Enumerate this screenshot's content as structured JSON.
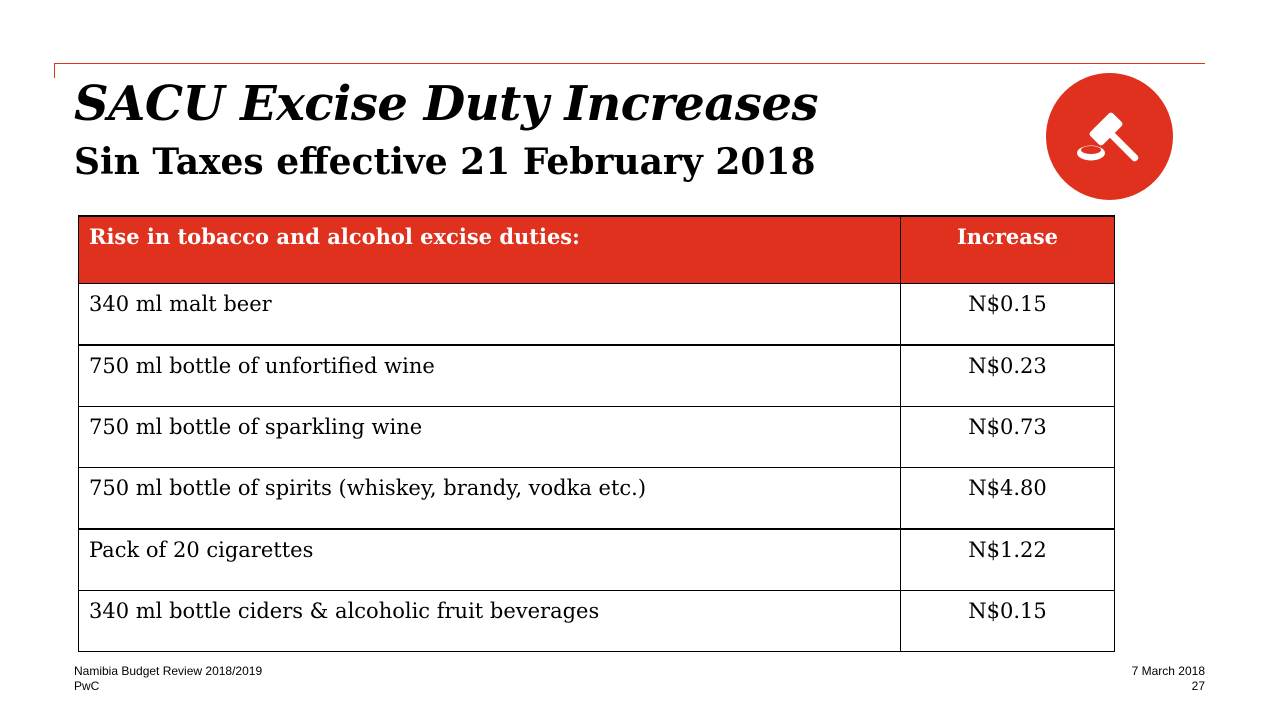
{
  "slide": {
    "title": "SACU Excise Duty Increases",
    "subtitle": "Sin Taxes effective 21 February 2018",
    "icon": "gavel-icon",
    "accent_color": "#e0301e"
  },
  "table": {
    "headers": {
      "item": "Rise in tobacco and alcohol excise duties:",
      "increase": "Increase"
    },
    "rows": [
      {
        "item": "340 ml malt beer",
        "increase": "N$0.15"
      },
      {
        "item": "750 ml bottle of unfortified wine",
        "increase": "N$0.23"
      },
      {
        "item": "750 ml bottle of sparkling wine",
        "increase": "N$0.73"
      },
      {
        "item": "750 ml bottle of spirits (whiskey, brandy, vodka etc.)",
        "increase": "N$4.80"
      },
      {
        "item": "Pack of 20 cigarettes",
        "increase": "N$1.22"
      },
      {
        "item": "340 ml bottle ciders & alcoholic fruit beverages",
        "increase": "N$0.15"
      }
    ]
  },
  "footer": {
    "report_name": "Namibia Budget Review 2018/2019",
    "company": "PwC",
    "date": "7 March 2018",
    "page_number": "27"
  }
}
